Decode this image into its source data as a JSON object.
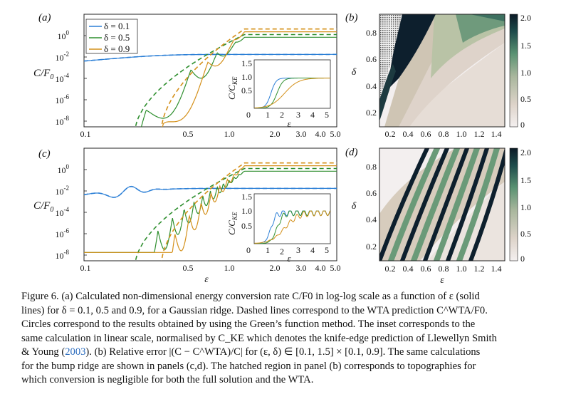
{
  "colors": {
    "delta_0_1": "#2b7fd6",
    "delta_0_5": "#2f8f2f",
    "delta_0_9": "#d4901a",
    "error_high": "#0d1f2d",
    "error_mid": "#6a9a78",
    "error_low": "#f2eeee",
    "citation": "#2a6bbd"
  },
  "panels": {
    "a": {
      "label": "(a)",
      "ylabel": "C/F",
      "ylabel_sub": "0",
      "yticks": [
        {
          "base": "10",
          "exp": "0",
          "value": 0
        },
        {
          "base": "10",
          "exp": "-2",
          "value": -2
        },
        {
          "base": "10",
          "exp": "-4",
          "value": -4
        },
        {
          "base": "10",
          "exp": "-6",
          "value": -6
        },
        {
          "base": "10",
          "exp": "-8",
          "value": -8
        }
      ],
      "xticks": [
        "0.1",
        "0.5",
        "1.0",
        "2.0",
        "3.0",
        "4.0",
        "5.0"
      ],
      "legend": [
        "δ = 0.1",
        "δ = 0.5",
        "δ = 0.9"
      ],
      "inset": {
        "ylabel": "C/C",
        "ylabel_sub": "KE",
        "yticks": [
          "1.5",
          "1.0",
          "0.5"
        ],
        "xticks": [
          "0",
          "1",
          "2",
          "3",
          "4",
          "5"
        ],
        "xlabel": "ε"
      }
    },
    "b": {
      "label": "(b)",
      "ylabel": "δ",
      "yticks": [
        "0.8",
        "0.6",
        "0.4",
        "0.2"
      ],
      "xticks": [
        "0.2",
        "0.4",
        "0.6",
        "0.8",
        "1.0",
        "1.2",
        "1.4"
      ],
      "colorbar": [
        "2.0",
        "1.5",
        "1.0",
        "0.5",
        "0"
      ]
    },
    "c": {
      "label": "(c)",
      "ylabel": "C/F",
      "ylabel_sub": "0",
      "yticks": [
        {
          "base": "10",
          "exp": "0",
          "value": 0
        },
        {
          "base": "10",
          "exp": "-2",
          "value": -2
        },
        {
          "base": "10",
          "exp": "-4",
          "value": -4
        },
        {
          "base": "10",
          "exp": "-6",
          "value": -6
        },
        {
          "base": "10",
          "exp": "-8",
          "value": -8
        }
      ],
      "xticks": [
        "0.1",
        "0.5",
        "1.0",
        "2.0",
        "3.0",
        "4.0",
        "5.0"
      ],
      "xlabel": "ε",
      "inset": {
        "ylabel": "C/C",
        "ylabel_sub": "KE",
        "yticks": [
          "1.5",
          "1.0",
          "0.5"
        ],
        "xticks": [
          "0",
          "1",
          "2",
          "3",
          "4",
          "5"
        ],
        "xlabel": "ε"
      }
    },
    "d": {
      "label": "(d)",
      "ylabel": "δ",
      "yticks": [
        "0.8",
        "0.6",
        "0.4",
        "0.2"
      ],
      "xticks": [
        "0.2",
        "0.4",
        "0.6",
        "0.8",
        "1.0",
        "1.2",
        "1.4"
      ],
      "xlabel": "ε",
      "colorbar": [
        "2.0",
        "1.5",
        "1.0",
        "0.5",
        "0"
      ]
    }
  },
  "caption": {
    "l1": "Figure 6. (a) Calculated non-dimensional energy conversion rate C/F0 in log-log scale as a function of ε (solid",
    "l2": "lines) for δ = 0.1, 0.5 and 0.9, for a Gaussian ridge. Dashed lines correspond to the WTA prediction C^WTA/F0.",
    "l3": "Circles correspond to the results obtained by using the Green’s function method. The inset corresponds to the",
    "l4": "same calculation in linear scale, normalised by C_KE which denotes the knife-edge prediction of Llewellyn Smith",
    "l5a": "& Young (",
    "l5cite": "2003",
    "l5b": "). (b) Relative error |(C − C^WTA)/C| for (ε, δ) ∈ [0.1, 1.5] × [0.1, 0.9]. The same calculations",
    "l6": "for the bump ridge are shown in panels (c,d). The hatched region in panel (b) corresponds to topographies for",
    "l7": "which conversion is negligible for both the full solution and the WTA."
  }
}
